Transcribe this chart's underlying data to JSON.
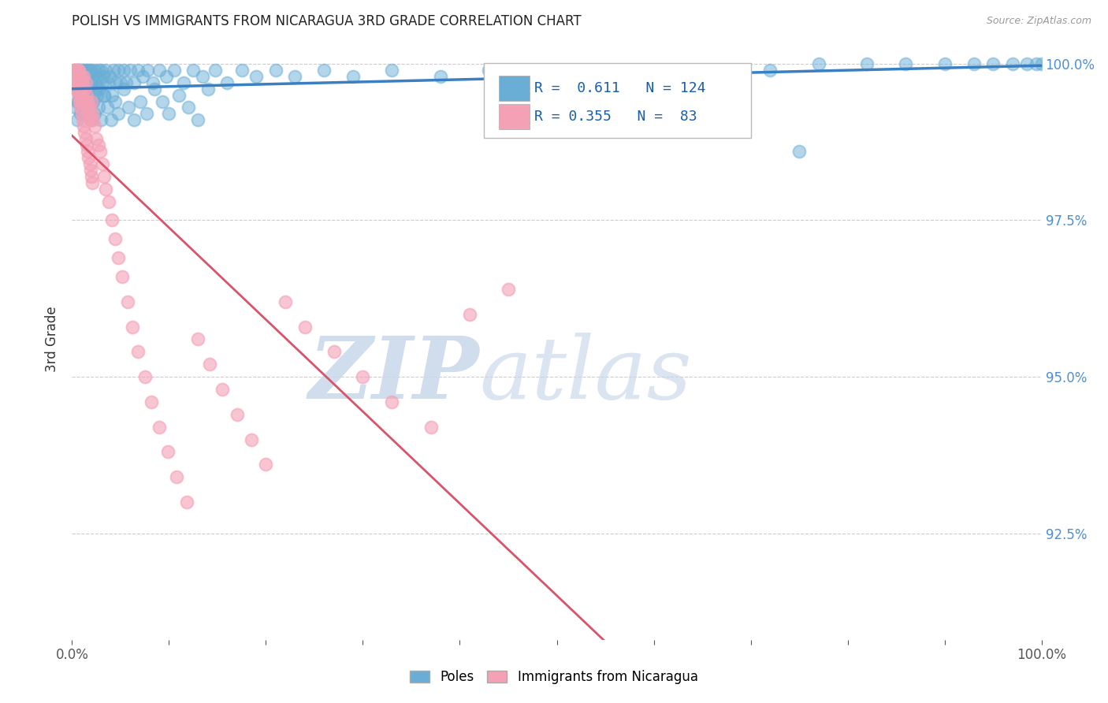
{
  "title": "POLISH VS IMMIGRANTS FROM NICARAGUA 3RD GRADE CORRELATION CHART",
  "source": "Source: ZipAtlas.com",
  "ylabel": "3rd Grade",
  "watermark_zip": "ZIP",
  "watermark_atlas": "atlas",
  "xlim": [
    0.0,
    1.0
  ],
  "ylim": [
    0.908,
    1.004
  ],
  "yticks": [
    0.925,
    0.95,
    0.975,
    1.0
  ],
  "ytick_labels": [
    "92.5%",
    "95.0%",
    "97.5%",
    "100.0%"
  ],
  "legend_R_blue": "0.611",
  "legend_N_blue": "124",
  "legend_R_pink": "0.355",
  "legend_N_pink": "83",
  "blue_color": "#6aaed6",
  "pink_color": "#f4a0b5",
  "blue_line_color": "#3a7fc1",
  "pink_line_color": "#d9536a",
  "title_color": "#222222",
  "axis_label_color": "#333333",
  "tick_color": "#555555",
  "right_tick_color": "#4a90d9",
  "grid_color": "#cccccc",
  "background_color": "#ffffff",
  "blue_points_x": [
    0.002,
    0.003,
    0.004,
    0.005,
    0.005,
    0.006,
    0.006,
    0.007,
    0.007,
    0.008,
    0.008,
    0.009,
    0.009,
    0.01,
    0.01,
    0.011,
    0.011,
    0.012,
    0.012,
    0.013,
    0.013,
    0.014,
    0.015,
    0.015,
    0.016,
    0.016,
    0.017,
    0.018,
    0.018,
    0.019,
    0.02,
    0.02,
    0.021,
    0.022,
    0.023,
    0.024,
    0.025,
    0.026,
    0.027,
    0.028,
    0.03,
    0.031,
    0.032,
    0.033,
    0.035,
    0.037,
    0.039,
    0.041,
    0.043,
    0.045,
    0.048,
    0.05,
    0.053,
    0.056,
    0.06,
    0.064,
    0.068,
    0.073,
    0.078,
    0.083,
    0.09,
    0.097,
    0.105,
    0.115,
    0.125,
    0.135,
    0.148,
    0.16,
    0.175,
    0.19,
    0.21,
    0.23,
    0.26,
    0.29,
    0.33,
    0.38,
    0.43,
    0.48,
    0.54,
    0.6,
    0.66,
    0.72,
    0.77,
    0.82,
    0.86,
    0.9,
    0.93,
    0.95,
    0.97,
    0.985,
    0.995,
    1.0,
    0.003,
    0.005,
    0.007,
    0.009,
    0.011,
    0.013,
    0.015,
    0.017,
    0.019,
    0.021,
    0.023,
    0.025,
    0.027,
    0.03,
    0.033,
    0.036,
    0.04,
    0.044,
    0.048,
    0.053,
    0.058,
    0.064,
    0.07,
    0.077,
    0.085,
    0.093,
    0.1,
    0.11,
    0.12,
    0.13,
    0.14,
    0.75
  ],
  "blue_points_y": [
    0.997,
    0.999,
    0.996,
    0.998,
    0.994,
    0.999,
    0.996,
    0.998,
    0.995,
    0.999,
    0.996,
    0.998,
    0.994,
    0.999,
    0.996,
    0.998,
    0.994,
    0.999,
    0.996,
    0.998,
    0.994,
    0.999,
    0.998,
    0.995,
    0.999,
    0.996,
    0.998,
    0.994,
    0.999,
    0.997,
    0.999,
    0.996,
    0.998,
    0.994,
    0.999,
    0.997,
    0.998,
    0.995,
    0.999,
    0.996,
    0.999,
    0.997,
    0.998,
    0.995,
    0.999,
    0.997,
    0.998,
    0.995,
    0.999,
    0.997,
    0.999,
    0.997,
    0.999,
    0.997,
    0.999,
    0.997,
    0.999,
    0.998,
    0.999,
    0.997,
    0.999,
    0.998,
    0.999,
    0.997,
    0.999,
    0.998,
    0.999,
    0.997,
    0.999,
    0.998,
    0.999,
    0.998,
    0.999,
    0.998,
    0.999,
    0.998,
    0.999,
    0.998,
    0.999,
    0.998,
    0.999,
    0.999,
    1.0,
    1.0,
    1.0,
    1.0,
    1.0,
    1.0,
    1.0,
    1.0,
    1.0,
    1.0,
    0.993,
    0.991,
    0.994,
    0.992,
    0.994,
    0.992,
    0.995,
    0.993,
    0.991,
    0.994,
    0.992,
    0.996,
    0.993,
    0.991,
    0.995,
    0.993,
    0.991,
    0.994,
    0.992,
    0.996,
    0.993,
    0.991,
    0.994,
    0.992,
    0.996,
    0.994,
    0.992,
    0.995,
    0.993,
    0.991,
    0.996,
    0.986
  ],
  "pink_points_x": [
    0.002,
    0.003,
    0.004,
    0.005,
    0.005,
    0.006,
    0.006,
    0.007,
    0.007,
    0.008,
    0.008,
    0.009,
    0.009,
    0.01,
    0.01,
    0.011,
    0.011,
    0.012,
    0.013,
    0.014,
    0.015,
    0.015,
    0.016,
    0.017,
    0.018,
    0.019,
    0.02,
    0.021,
    0.022,
    0.023,
    0.025,
    0.027,
    0.029,
    0.031,
    0.033,
    0.035,
    0.038,
    0.041,
    0.044,
    0.048,
    0.052,
    0.057,
    0.062,
    0.068,
    0.075,
    0.082,
    0.09,
    0.099,
    0.108,
    0.118,
    0.13,
    0.142,
    0.155,
    0.17,
    0.185,
    0.2,
    0.22,
    0.24,
    0.27,
    0.3,
    0.33,
    0.37,
    0.41,
    0.45,
    0.003,
    0.004,
    0.005,
    0.006,
    0.007,
    0.008,
    0.009,
    0.01,
    0.011,
    0.012,
    0.013,
    0.014,
    0.015,
    0.016,
    0.017,
    0.018,
    0.019,
    0.02,
    0.021
  ],
  "pink_points_y": [
    0.999,
    0.997,
    0.999,
    0.998,
    0.996,
    0.999,
    0.997,
    0.999,
    0.996,
    0.998,
    0.995,
    0.997,
    0.994,
    0.998,
    0.995,
    0.997,
    0.994,
    0.998,
    0.996,
    0.997,
    0.995,
    0.993,
    0.994,
    0.992,
    0.993,
    0.991,
    0.994,
    0.992,
    0.991,
    0.99,
    0.988,
    0.987,
    0.986,
    0.984,
    0.982,
    0.98,
    0.978,
    0.975,
    0.972,
    0.969,
    0.966,
    0.962,
    0.958,
    0.954,
    0.95,
    0.946,
    0.942,
    0.938,
    0.934,
    0.93,
    0.956,
    0.952,
    0.948,
    0.944,
    0.94,
    0.936,
    0.962,
    0.958,
    0.954,
    0.95,
    0.946,
    0.942,
    0.96,
    0.964,
    0.999,
    0.998,
    0.997,
    0.996,
    0.995,
    0.994,
    0.993,
    0.992,
    0.991,
    0.99,
    0.989,
    0.988,
    0.987,
    0.986,
    0.985,
    0.984,
    0.983,
    0.982,
    0.981
  ]
}
